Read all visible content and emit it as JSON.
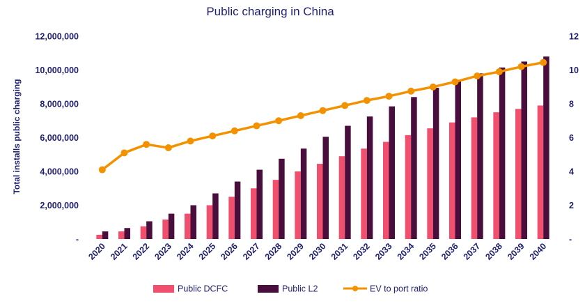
{
  "chart_data": {
    "type": "bar",
    "title": "Public charging in China",
    "ylabel": "Total installs public charging",
    "y2label": "",
    "xlabel": "",
    "ylim": [
      0,
      12000000
    ],
    "y2lim": [
      0,
      12
    ],
    "yticks": [
      0,
      2000000,
      4000000,
      6000000,
      8000000,
      10000000,
      12000000
    ],
    "ytick_labels": [
      "-",
      "2,000,000",
      "4,000,000",
      "6,000,000",
      "8,000,000",
      "10,000,000",
      "12,000,000"
    ],
    "y2ticks": [
      0,
      2,
      4,
      6,
      8,
      10,
      12
    ],
    "y2tick_labels": [
      "-",
      "2",
      "4",
      "6",
      "8",
      "10",
      "12"
    ],
    "categories": [
      "2020",
      "2021",
      "2022",
      "2023",
      "2024",
      "2025",
      "2026",
      "2027",
      "2028",
      "2029",
      "2030",
      "2031",
      "2032",
      "2033",
      "2034",
      "2035",
      "2036",
      "2037",
      "2038",
      "2039",
      "2040"
    ],
    "series": [
      {
        "name": "Public DCFC",
        "type": "bar",
        "axis": "left",
        "color": "#f0506e",
        "values": [
          250000,
          450000,
          750000,
          1150000,
          1500000,
          2000000,
          2500000,
          3000000,
          3500000,
          4000000,
          4450000,
          4900000,
          5350000,
          5750000,
          6150000,
          6550000,
          6900000,
          7200000,
          7500000,
          7700000,
          7900000
        ]
      },
      {
        "name": "Public L2",
        "type": "bar",
        "axis": "left",
        "color": "#4a0e3c",
        "values": [
          450000,
          650000,
          1050000,
          1500000,
          2000000,
          2700000,
          3400000,
          4100000,
          4750000,
          5350000,
          6050000,
          6700000,
          7250000,
          7850000,
          8400000,
          8950000,
          9350000,
          9800000,
          10150000,
          10500000,
          10800000
        ]
      },
      {
        "name": "EV to port ratio",
        "type": "line",
        "axis": "right",
        "color": "#f39200",
        "values": [
          4.1,
          5.1,
          5.6,
          5.4,
          5.8,
          6.1,
          6.4,
          6.7,
          7.0,
          7.3,
          7.6,
          7.9,
          8.2,
          8.45,
          8.75,
          9.0,
          9.3,
          9.65,
          9.9,
          10.2,
          10.45
        ]
      }
    ],
    "legend_position": "bottom-center"
  }
}
